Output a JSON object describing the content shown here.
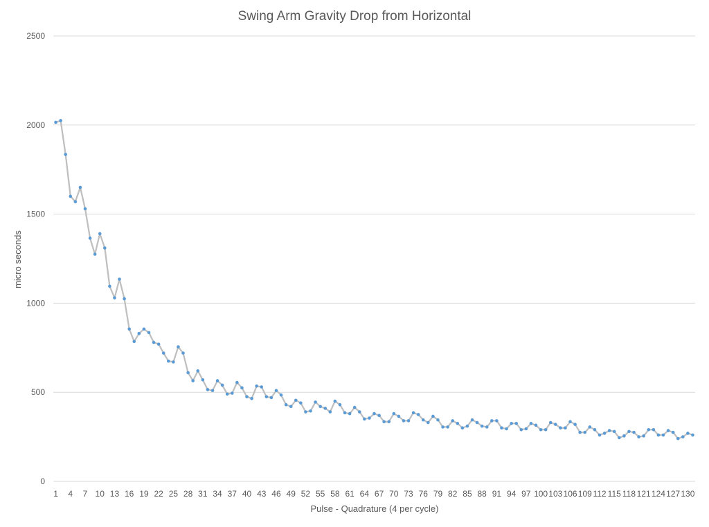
{
  "chart_data": {
    "type": "line",
    "title": "Swing Arm Gravity Drop from Horizontal",
    "xlabel": "Pulse - Quadrature  (4 per cycle)",
    "ylabel": "micro seconds",
    "ylim": [
      0,
      2500
    ],
    "yticks": [
      0,
      500,
      1000,
      1500,
      2000,
      2500
    ],
    "xticks": [
      1,
      4,
      7,
      10,
      13,
      16,
      19,
      22,
      25,
      28,
      31,
      34,
      37,
      40,
      43,
      46,
      49,
      52,
      55,
      58,
      61,
      64,
      67,
      70,
      73,
      76,
      79,
      82,
      85,
      88,
      91,
      94,
      97,
      100,
      103,
      106,
      109,
      112,
      115,
      118,
      121,
      124,
      127,
      130
    ],
    "grid": "horizontal",
    "legend": "none",
    "colors": {
      "line": "#bfbfbf",
      "marker": "#5b9bd5",
      "grid": "#d9d9d9",
      "text": "#595959"
    },
    "series": [
      {
        "values": [
          2015,
          2025,
          1835,
          1600,
          1570,
          1650,
          1530,
          1365,
          1275,
          1390,
          1310,
          1095,
          1030,
          1135,
          1025,
          855,
          785,
          830,
          855,
          835,
          780,
          770,
          720,
          675,
          670,
          755,
          720,
          610,
          565,
          620,
          570,
          515,
          510,
          565,
          540,
          490,
          495,
          555,
          525,
          475,
          465,
          535,
          530,
          475,
          470,
          510,
          485,
          430,
          420,
          455,
          440,
          390,
          395,
          445,
          420,
          410,
          390,
          450,
          430,
          385,
          380,
          415,
          390,
          350,
          355,
          380,
          370,
          335,
          335,
          380,
          365,
          340,
          340,
          385,
          375,
          345,
          330,
          365,
          345,
          305,
          305,
          340,
          325,
          300,
          310,
          345,
          330,
          310,
          305,
          340,
          340,
          300,
          295,
          325,
          325,
          290,
          295,
          325,
          315,
          290,
          290,
          330,
          320,
          300,
          300,
          335,
          320,
          275,
          275,
          305,
          290,
          260,
          270,
          285,
          280,
          245,
          255,
          280,
          275,
          250,
          255,
          290,
          290,
          260,
          260,
          285,
          275,
          240,
          250,
          270,
          260
        ]
      }
    ]
  }
}
